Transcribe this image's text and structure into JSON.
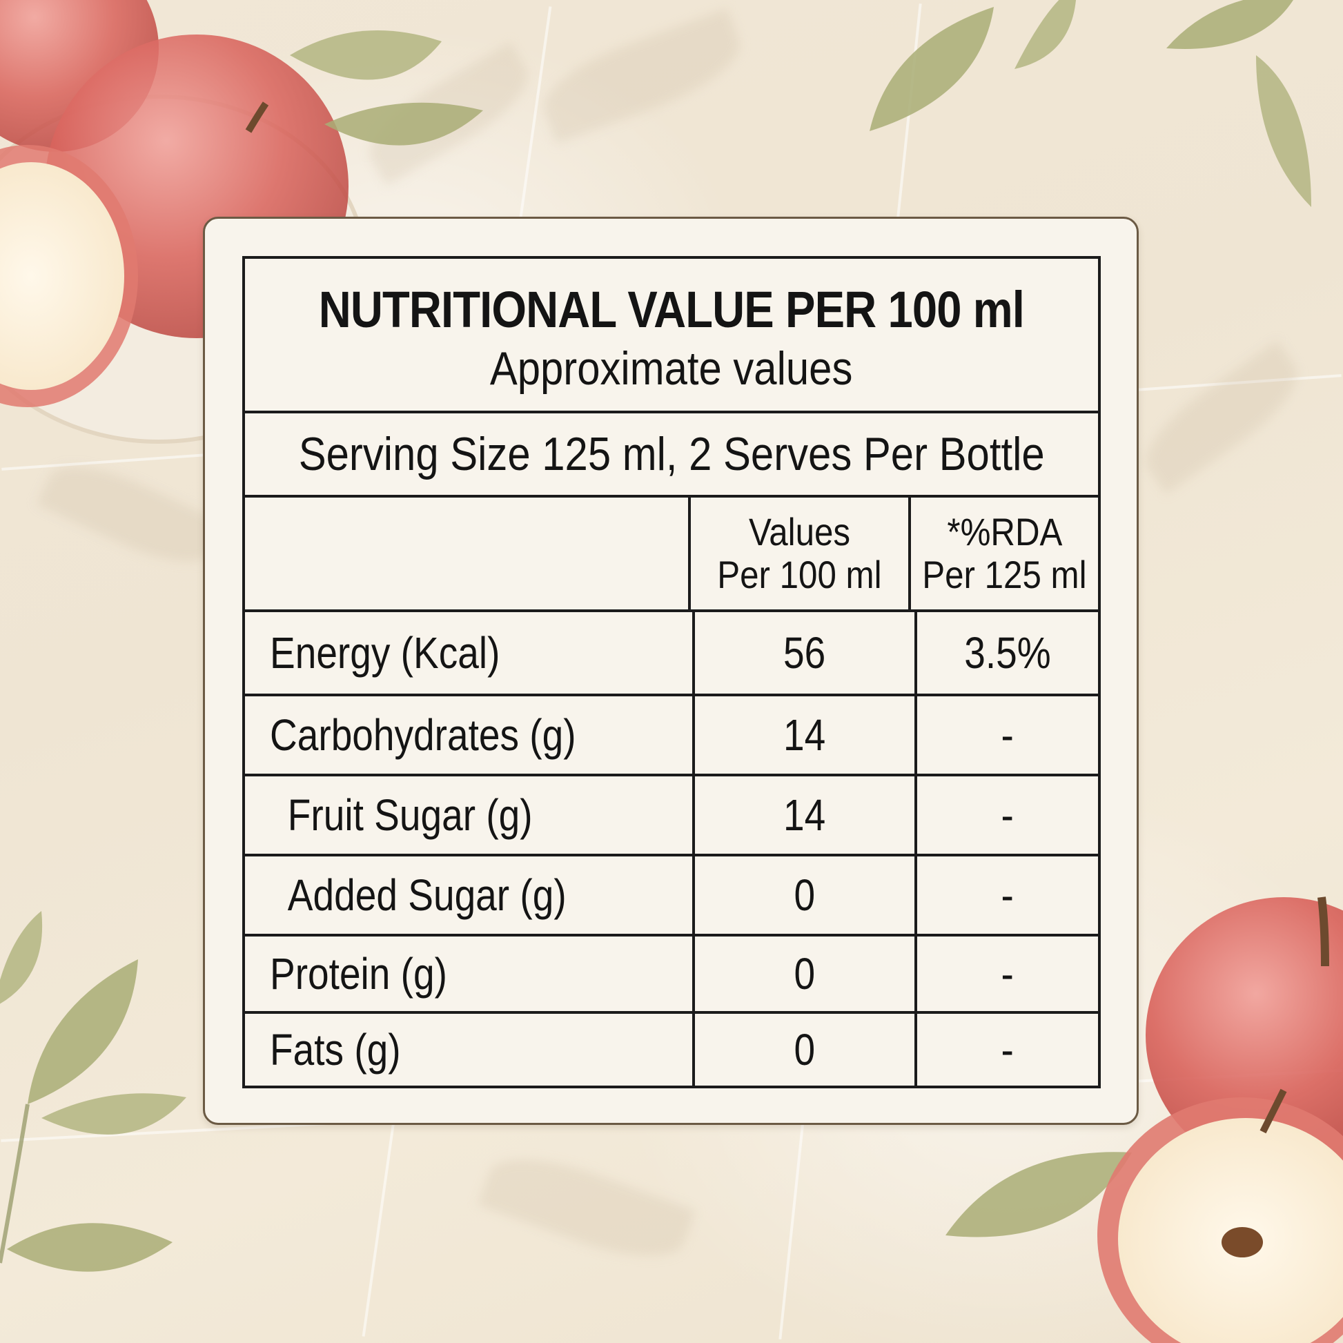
{
  "label": {
    "title": "NUTRITIONAL VALUE PER 100 ml",
    "subtitle": "Approximate values",
    "serving": "Serving Size 125 ml, 2 Serves Per Bottle",
    "headers": {
      "col2_line1": "Values",
      "col2_line2": "Per 100 ml",
      "col3_line1": "*%RDA",
      "col3_line2": "Per 125 ml"
    },
    "rows": [
      {
        "name": "Energy (Kcal)",
        "value": "56",
        "rda": "3.5%"
      },
      {
        "name": "Carbohydrates (g)",
        "value": "14",
        "rda": "-"
      },
      {
        "name": "Fruit Sugar (g)",
        "value": "14",
        "rda": "-"
      },
      {
        "name": "Added Sugar (g)",
        "value": "0",
        "rda": "-"
      },
      {
        "name": "Protein (g)",
        "value": "0",
        "rda": "-"
      },
      {
        "name": "Fats (g)",
        "value": "0",
        "rda": "-"
      }
    ]
  },
  "colors": {
    "background": "#efe6d6",
    "card": "#f8f4ec",
    "ink": "#141414",
    "apple_red": "#d9534f",
    "leaf_green": "#a9b07a"
  },
  "decor": {
    "icons": [
      "apple-icon",
      "apple-half-icon",
      "leaf-icon",
      "bowl-icon"
    ]
  }
}
